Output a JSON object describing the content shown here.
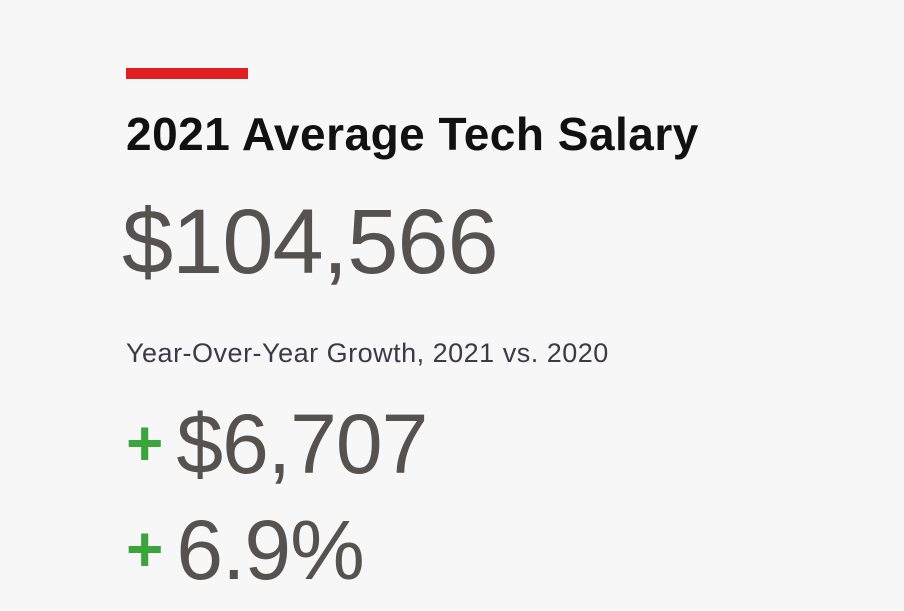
{
  "header": {
    "title": "2021 Average Tech Salary"
  },
  "salary": "$104,566",
  "growth": {
    "label": "Year-Over-Year Growth, 2021 vs. 2020",
    "items": [
      {
        "sign": "+",
        "value": "$6,707"
      },
      {
        "sign": "+",
        "value": "6.9%"
      }
    ]
  }
}
